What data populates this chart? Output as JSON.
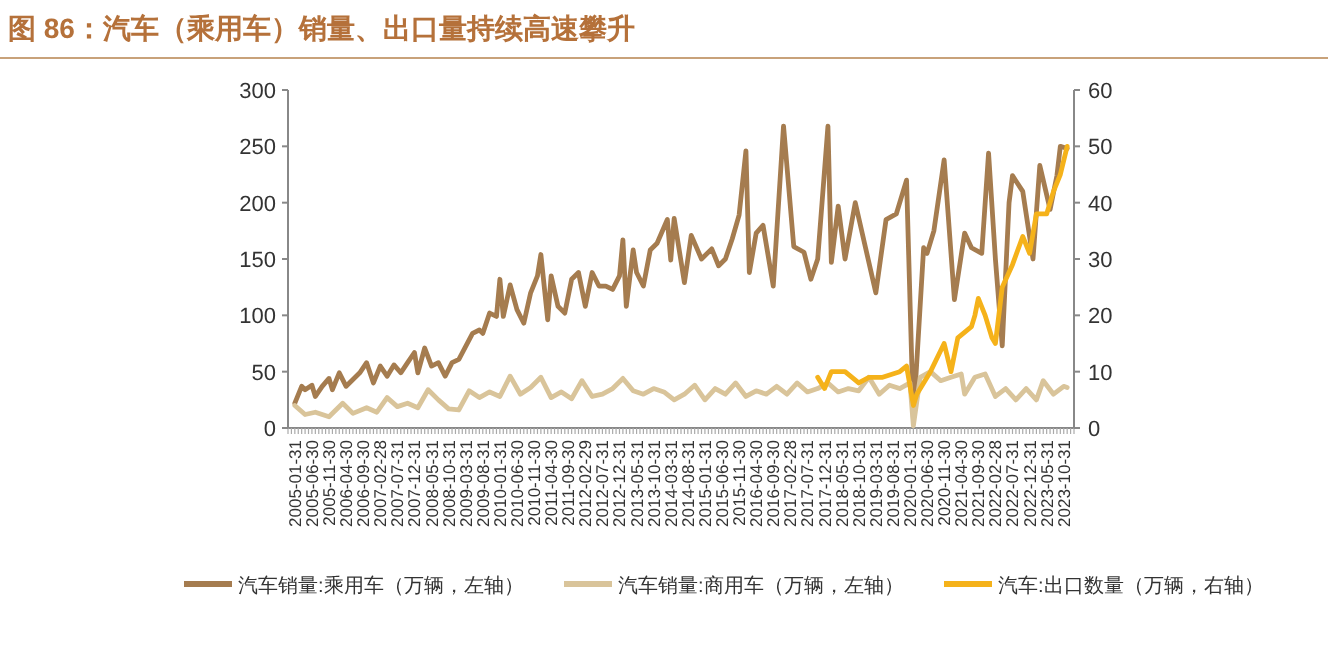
{
  "chart_data": {
    "type": "line",
    "title": "图 86：汽车（乘用车）销量、出口量持续高速攀升",
    "xlim": [
      "2004-11",
      "2024-01"
    ],
    "xticks": [
      {
        "value": "2005-01",
        "label": "2005-01-31"
      },
      {
        "value": "2005-06",
        "label": "2005-06-30"
      },
      {
        "value": "2005-11",
        "label": "2005-11-30"
      },
      {
        "value": "2006-04",
        "label": "2006-04-30"
      },
      {
        "value": "2006-09",
        "label": "2006-09-30"
      },
      {
        "value": "2007-02",
        "label": "2007-02-28"
      },
      {
        "value": "2007-07",
        "label": "2007-07-31"
      },
      {
        "value": "2007-12",
        "label": "2007-12-31"
      },
      {
        "value": "2008-05",
        "label": "2008-05-31"
      },
      {
        "value": "2008-10",
        "label": "2008-10-31"
      },
      {
        "value": "2009-03",
        "label": "2009-03-31"
      },
      {
        "value": "2009-08",
        "label": "2009-08-31"
      },
      {
        "value": "2010-01",
        "label": "2010-01-31"
      },
      {
        "value": "2010-06",
        "label": "2010-06-30"
      },
      {
        "value": "2010-11",
        "label": "2010-11-30"
      },
      {
        "value": "2011-04",
        "label": "2011-04-30"
      },
      {
        "value": "2011-09",
        "label": "2011-09-30"
      },
      {
        "value": "2012-02",
        "label": "2012-02-29"
      },
      {
        "value": "2012-07",
        "label": "2012-07-31"
      },
      {
        "value": "2012-12",
        "label": "2012-12-31"
      },
      {
        "value": "2013-05",
        "label": "2013-05-31"
      },
      {
        "value": "2013-10",
        "label": "2013-10-31"
      },
      {
        "value": "2014-03",
        "label": "2014-03-31"
      },
      {
        "value": "2014-08",
        "label": "2014-08-31"
      },
      {
        "value": "2015-01",
        "label": "2015-01-31"
      },
      {
        "value": "2015-06",
        "label": "2015-06-30"
      },
      {
        "value": "2015-11",
        "label": "2015-11-30"
      },
      {
        "value": "2016-04",
        "label": "2016-04-30"
      },
      {
        "value": "2016-09",
        "label": "2016-09-30"
      },
      {
        "value": "2017-02",
        "label": "2017-02-28"
      },
      {
        "value": "2017-07",
        "label": "2017-07-31"
      },
      {
        "value": "2017-12",
        "label": "2017-12-31"
      },
      {
        "value": "2018-05",
        "label": "2018-05-31"
      },
      {
        "value": "2018-10",
        "label": "2018-10-31"
      },
      {
        "value": "2019-03",
        "label": "2019-03-31"
      },
      {
        "value": "2019-08",
        "label": "2019-08-31"
      },
      {
        "value": "2020-01",
        "label": "2020-01-31"
      },
      {
        "value": "2020-06",
        "label": "2020-06-30"
      },
      {
        "value": "2020-11",
        "label": "2020-11-30"
      },
      {
        "value": "2021-04",
        "label": "2021-04-30"
      },
      {
        "value": "2021-09",
        "label": "2021-09-30"
      },
      {
        "value": "2022-02",
        "label": "2022-02-28"
      },
      {
        "value": "2022-07",
        "label": "2022-07-31"
      },
      {
        "value": "2022-12",
        "label": "2022-12-31"
      },
      {
        "value": "2023-05",
        "label": "2023-05-31"
      },
      {
        "value": "2023-10",
        "label": "2023-10-31"
      }
    ],
    "ylim": [
      0,
      300
    ],
    "yticks": [
      0,
      50,
      100,
      150,
      200,
      250,
      300
    ],
    "y2lim": [
      0,
      60
    ],
    "y2ticks": [
      0,
      10,
      20,
      30,
      40,
      50,
      60
    ],
    "legend": "bottom",
    "series": [
      {
        "name": "汽车销量:乘用车（万辆，左轴）",
        "color": "#a57c4f",
        "x": [
          "2005-01",
          "2005-03",
          "2005-04",
          "2005-06",
          "2005-07",
          "2005-09",
          "2005-11",
          "2005-12",
          "2006-02",
          "2006-04",
          "2006-06",
          "2006-08",
          "2006-10",
          "2006-12",
          "2007-02",
          "2007-04",
          "2007-06",
          "2007-08",
          "2007-10",
          "2007-12",
          "2008-01",
          "2008-03",
          "2008-05",
          "2008-07",
          "2008-09",
          "2008-11",
          "2009-01",
          "2009-05",
          "2009-07",
          "2009-08",
          "2009-10",
          "2009-12",
          "2010-01",
          "2010-02",
          "2010-04",
          "2010-06",
          "2010-08",
          "2010-10",
          "2010-12",
          "2011-01",
          "2011-03",
          "2011-04",
          "2011-06",
          "2011-08",
          "2011-10",
          "2011-12",
          "2012-02",
          "2012-04",
          "2012-06",
          "2012-08",
          "2012-10",
          "2012-12",
          "2013-01",
          "2013-02",
          "2013-04",
          "2013-05",
          "2013-07",
          "2013-09",
          "2013-11",
          "2014-02",
          "2014-03",
          "2014-04",
          "2014-07",
          "2014-09",
          "2014-12",
          "2015-03",
          "2015-05",
          "2015-07",
          "2015-09",
          "2015-11",
          "2016-01",
          "2016-02",
          "2016-04",
          "2016-06",
          "2016-09",
          "2016-12",
          "2017-03",
          "2017-06",
          "2017-08",
          "2017-10",
          "2018-01",
          "2018-02",
          "2018-04",
          "2018-06",
          "2018-09",
          "2018-12",
          "2019-03",
          "2019-06",
          "2019-09",
          "2019-12",
          "2020-02",
          "2020-05",
          "2020-06",
          "2020-08",
          "2020-11",
          "2021-02",
          "2021-05",
          "2021-07",
          "2021-10",
          "2021-12",
          "2022-02",
          "2022-04",
          "2022-06",
          "2022-07",
          "2022-10",
          "2023-01",
          "2023-03",
          "2023-06",
          "2023-08",
          "2023-09",
          "2023-11"
        ],
        "values": [
          22,
          37,
          34,
          38,
          28,
          37,
          44,
          34,
          49,
          37,
          43,
          49,
          58,
          40,
          55,
          46,
          56,
          49,
          58,
          67,
          49,
          71,
          55,
          58,
          46,
          58,
          61,
          84,
          87,
          84,
          102,
          99,
          132,
          99,
          127,
          105,
          93,
          120,
          135,
          154,
          96,
          135,
          108,
          102,
          132,
          138,
          108,
          138,
          126,
          126,
          123,
          135,
          167,
          108,
          158,
          138,
          126,
          158,
          164,
          185,
          149,
          186,
          129,
          171,
          150,
          159,
          144,
          150,
          168,
          189,
          246,
          138,
          173,
          180,
          126,
          268,
          161,
          156,
          132,
          150,
          268,
          147,
          197,
          150,
          200,
          160,
          120,
          185,
          190,
          220,
          8,
          160,
          155,
          175,
          238,
          114,
          173,
          160,
          155,
          244,
          150,
          73,
          200,
          224,
          210,
          150,
          233,
          194,
          224,
          250,
          248
        ]
      },
      {
        "name": "汽车销量:商用车（万辆，左轴）",
        "color": "#d9c49a",
        "x": [
          "2005-01",
          "2005-04",
          "2005-07",
          "2005-11",
          "2006-03",
          "2006-06",
          "2006-10",
          "2007-01",
          "2007-04",
          "2007-07",
          "2007-10",
          "2008-01",
          "2008-04",
          "2008-07",
          "2008-10",
          "2009-01",
          "2009-04",
          "2009-07",
          "2009-10",
          "2010-01",
          "2010-04",
          "2010-07",
          "2010-10",
          "2011-01",
          "2011-04",
          "2011-07",
          "2011-10",
          "2012-01",
          "2012-04",
          "2012-07",
          "2012-10",
          "2013-01",
          "2013-04",
          "2013-07",
          "2013-10",
          "2014-01",
          "2014-04",
          "2014-07",
          "2014-10",
          "2015-01",
          "2015-04",
          "2015-07",
          "2015-10",
          "2016-01",
          "2016-04",
          "2016-07",
          "2016-10",
          "2017-01",
          "2017-04",
          "2017-07",
          "2017-10",
          "2018-01",
          "2018-04",
          "2018-07",
          "2018-10",
          "2019-01",
          "2019-04",
          "2019-07",
          "2019-10",
          "2020-01",
          "2020-02",
          "2020-04",
          "2020-07",
          "2020-10",
          "2021-01",
          "2021-04",
          "2021-05",
          "2021-08",
          "2021-11",
          "2022-02",
          "2022-05",
          "2022-08",
          "2022-11",
          "2023-02",
          "2023-04",
          "2023-07",
          "2023-10",
          "2023-11"
        ],
        "values": [
          20,
          12,
          14,
          10,
          22,
          13,
          18,
          14,
          27,
          19,
          22,
          18,
          34,
          25,
          17,
          16,
          33,
          27,
          32,
          28,
          46,
          30,
          36,
          45,
          27,
          32,
          26,
          42,
          28,
          30,
          35,
          44,
          33,
          30,
          35,
          32,
          25,
          30,
          38,
          25,
          35,
          30,
          40,
          28,
          33,
          30,
          37,
          30,
          40,
          32,
          35,
          40,
          32,
          35,
          33,
          45,
          30,
          38,
          35,
          40,
          2,
          45,
          50,
          42,
          45,
          48,
          30,
          45,
          48,
          28,
          35,
          25,
          35,
          25,
          42,
          30,
          37,
          36
        ]
      },
      {
        "name": "汽车:出口数量（万辆，右轴）",
        "color": "#f5b21a",
        "axis": "y2",
        "x": [
          "2017-10",
          "2017-12",
          "2018-02",
          "2018-06",
          "2018-10",
          "2019-01",
          "2019-05",
          "2019-10",
          "2019-12",
          "2020-02",
          "2020-03",
          "2020-07",
          "2020-11",
          "2021-01",
          "2021-03",
          "2021-07",
          "2021-08",
          "2021-09",
          "2021-11",
          "2022-01",
          "2022-02",
          "2022-04",
          "2022-07",
          "2022-10",
          "2022-12",
          "2023-02",
          "2023-05",
          "2023-07",
          "2023-09",
          "2023-11"
        ],
        "values": [
          9,
          7,
          10,
          10,
          8,
          9,
          9,
          10,
          11,
          4,
          6,
          10,
          15,
          10,
          16,
          18,
          20,
          23,
          20,
          16,
          15,
          25,
          29,
          34,
          31,
          38,
          38,
          42,
          45,
          50
        ]
      }
    ]
  }
}
